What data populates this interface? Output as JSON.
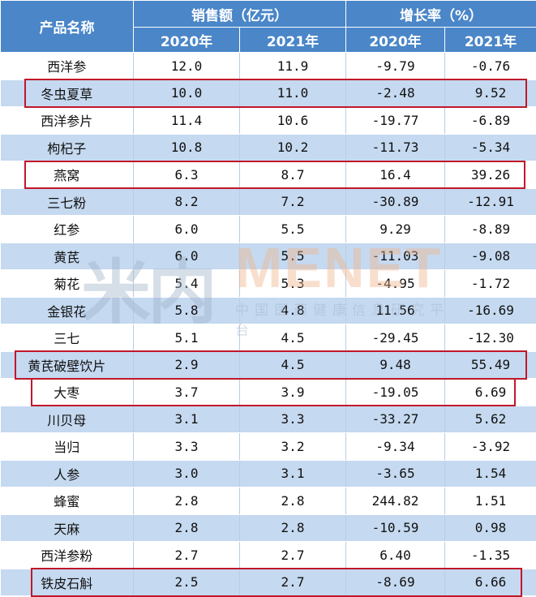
{
  "header": {
    "product_col": "产品名称",
    "sales_group": "销售额（亿元）",
    "growth_group": "增长率（%）",
    "sales_2020": "2020年",
    "sales_2021": "2021年",
    "growth_2020": "2020年",
    "growth_2021": "2021年"
  },
  "rows": [
    {
      "name": "西洋参",
      "s2020": "12.0",
      "s2021": "11.9",
      "g2020": "-9.79",
      "g2021": "-0.76",
      "highlighted": false
    },
    {
      "name": "冬虫夏草",
      "s2020": "10.0",
      "s2021": "11.0",
      "g2020": "-2.48",
      "g2021": "9.52",
      "highlighted": true
    },
    {
      "name": "西洋参片",
      "s2020": "11.4",
      "s2021": "10.6",
      "g2020": "-19.77",
      "g2021": "-6.89",
      "highlighted": false
    },
    {
      "name": "枸杞子",
      "s2020": "10.8",
      "s2021": "10.2",
      "g2020": "-11.73",
      "g2021": "-5.34",
      "highlighted": false
    },
    {
      "name": "燕窝",
      "s2020": "6.3",
      "s2021": "8.7",
      "g2020": "16.4",
      "g2021": "39.26",
      "highlighted": true
    },
    {
      "name": "三七粉",
      "s2020": "8.2",
      "s2021": "7.2",
      "g2020": "-30.89",
      "g2021": "-12.91",
      "highlighted": false
    },
    {
      "name": "红参",
      "s2020": "6.0",
      "s2021": "5.5",
      "g2020": "9.29",
      "g2021": "-8.89",
      "highlighted": false
    },
    {
      "name": "黄芪",
      "s2020": "6.0",
      "s2021": "5.5",
      "g2020": "-11.03",
      "g2021": "-9.08",
      "highlighted": false
    },
    {
      "name": "菊花",
      "s2020": "5.4",
      "s2021": "5.3",
      "g2020": "-4.95",
      "g2021": "-1.72",
      "highlighted": false
    },
    {
      "name": "金银花",
      "s2020": "5.8",
      "s2021": "4.8",
      "g2020": "11.56",
      "g2021": "-16.69",
      "highlighted": false
    },
    {
      "name": "三七",
      "s2020": "5.1",
      "s2021": "4.5",
      "g2020": "-29.45",
      "g2021": "-12.30",
      "highlighted": false
    },
    {
      "name": "黄芪破壁饮片",
      "s2020": "2.9",
      "s2021": "4.5",
      "g2020": "9.48",
      "g2021": "55.49",
      "highlighted": true
    },
    {
      "name": "大枣",
      "s2020": "3.7",
      "s2021": "3.9",
      "g2020": "-19.05",
      "g2021": "6.69",
      "highlighted": true
    },
    {
      "name": "川贝母",
      "s2020": "3.1",
      "s2021": "3.3",
      "g2020": "-33.27",
      "g2021": "5.62",
      "highlighted": false
    },
    {
      "name": "当归",
      "s2020": "3.3",
      "s2021": "3.2",
      "g2020": "-9.34",
      "g2021": "-3.92",
      "highlighted": false
    },
    {
      "name": "人参",
      "s2020": "3.0",
      "s2021": "3.1",
      "g2020": "-3.65",
      "g2021": "1.54",
      "highlighted": false
    },
    {
      "name": "蜂蜜",
      "s2020": "2.8",
      "s2021": "2.8",
      "g2020": "244.82",
      "g2021": "1.51",
      "highlighted": false
    },
    {
      "name": "天麻",
      "s2020": "2.8",
      "s2021": "2.8",
      "g2020": "-10.59",
      "g2021": "0.98",
      "highlighted": false
    },
    {
      "name": "西洋参粉",
      "s2020": "2.7",
      "s2021": "2.7",
      "g2020": "6.40",
      "g2021": "-1.35",
      "highlighted": false
    },
    {
      "name": "铁皮石斛",
      "s2020": "2.5",
      "s2021": "2.7",
      "g2020": "-8.69",
      "g2021": "6.66",
      "highlighted": true
    }
  ],
  "watermark": {
    "logo": "米内",
    "brand": "MENET",
    "tagline": "中国医药健康信息研究平台"
  },
  "colors": {
    "header_bg": "#4a86c8",
    "alt_row_bg": "#c5d9f0",
    "highlight_border": "#c0182a"
  }
}
